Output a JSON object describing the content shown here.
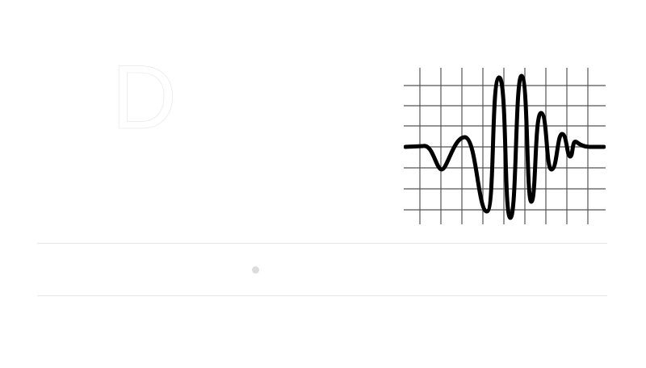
{
  "logo": {
    "letter": "D"
  },
  "waveform": {
    "icon": "waveform-icon",
    "stroke_color": "#000000",
    "grid_color": "#555555"
  },
  "colors": {
    "background": "#ffffff",
    "divider": "#e6e6e6",
    "indicator": "#dcdcdc"
  }
}
